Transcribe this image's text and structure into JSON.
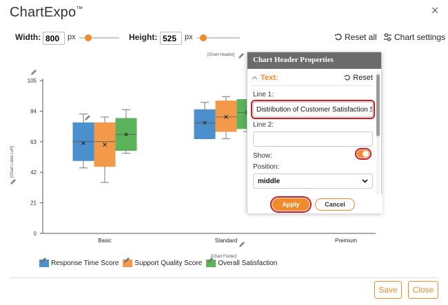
{
  "app": {
    "brand": "ChartExpo",
    "trademark": "™"
  },
  "toolbar": {
    "width_label": "Width:",
    "width_value": "800",
    "height_label": "Height:",
    "height_value": "525",
    "unit": "px",
    "reset_all_label": "Reset all",
    "chart_settings_label": "Chart settings"
  },
  "placeholders": {
    "header": "[Chart Header]",
    "left": "[Chart Label Left]",
    "footer": "[Chart Footer]"
  },
  "panel": {
    "title": "Chart Header Properties",
    "section_title": "Text:",
    "reset_label": "Reset",
    "line1_label": "Line 1:",
    "line1_value": "Distribution of Customer Satisfaction Scores",
    "line2_label": "Line 2:",
    "line2_value": "",
    "show_label": "Show:",
    "show_value": true,
    "position_label": "Position:",
    "position_value": "middle",
    "apply_label": "Apply",
    "cancel_label": "Cancel"
  },
  "footer": {
    "save_label": "Save",
    "close_label": "Close"
  },
  "colors": {
    "accent": "#f08a2a",
    "highlight": "#d4141c",
    "series1": "#4b8fcd",
    "series2": "#f39a4a",
    "series3": "#5bb35b"
  },
  "chart_data": {
    "type": "boxplot",
    "categories": [
      "Basic",
      "Standard",
      "Premium"
    ],
    "y_ticks": [
      0,
      21,
      42,
      63,
      84,
      105
    ],
    "ylim": [
      0,
      105
    ],
    "series": [
      {
        "name": "Response Time Score",
        "color": "#4b8fcd",
        "boxes": [
          {
            "min": 45,
            "q1": 50,
            "median": 63,
            "q3": 76,
            "max": 82,
            "mean": 62
          },
          {
            "min": 65,
            "q1": 65,
            "median": 76,
            "q3": 85,
            "max": 90,
            "mean": 76
          },
          null
        ]
      },
      {
        "name": "Support Quality Score",
        "color": "#f39a4a",
        "boxes": [
          {
            "min": 35,
            "q1": 46,
            "median": 63,
            "q3": 76,
            "max": 80,
            "mean": 61
          },
          {
            "min": 65,
            "q1": 70,
            "median": 80,
            "q3": 91,
            "max": 94,
            "mean": 80
          },
          null
        ]
      },
      {
        "name": "Overall Satisfaction",
        "color": "#5bb35b",
        "boxes": [
          {
            "min": 55,
            "q1": 57,
            "median": 68,
            "q3": 79,
            "max": 85,
            "mean": 68
          },
          {
            "min": 70,
            "q1": 72,
            "median": 83,
            "q3": 92,
            "max": 92,
            "mean": 83
          },
          null
        ]
      }
    ]
  }
}
